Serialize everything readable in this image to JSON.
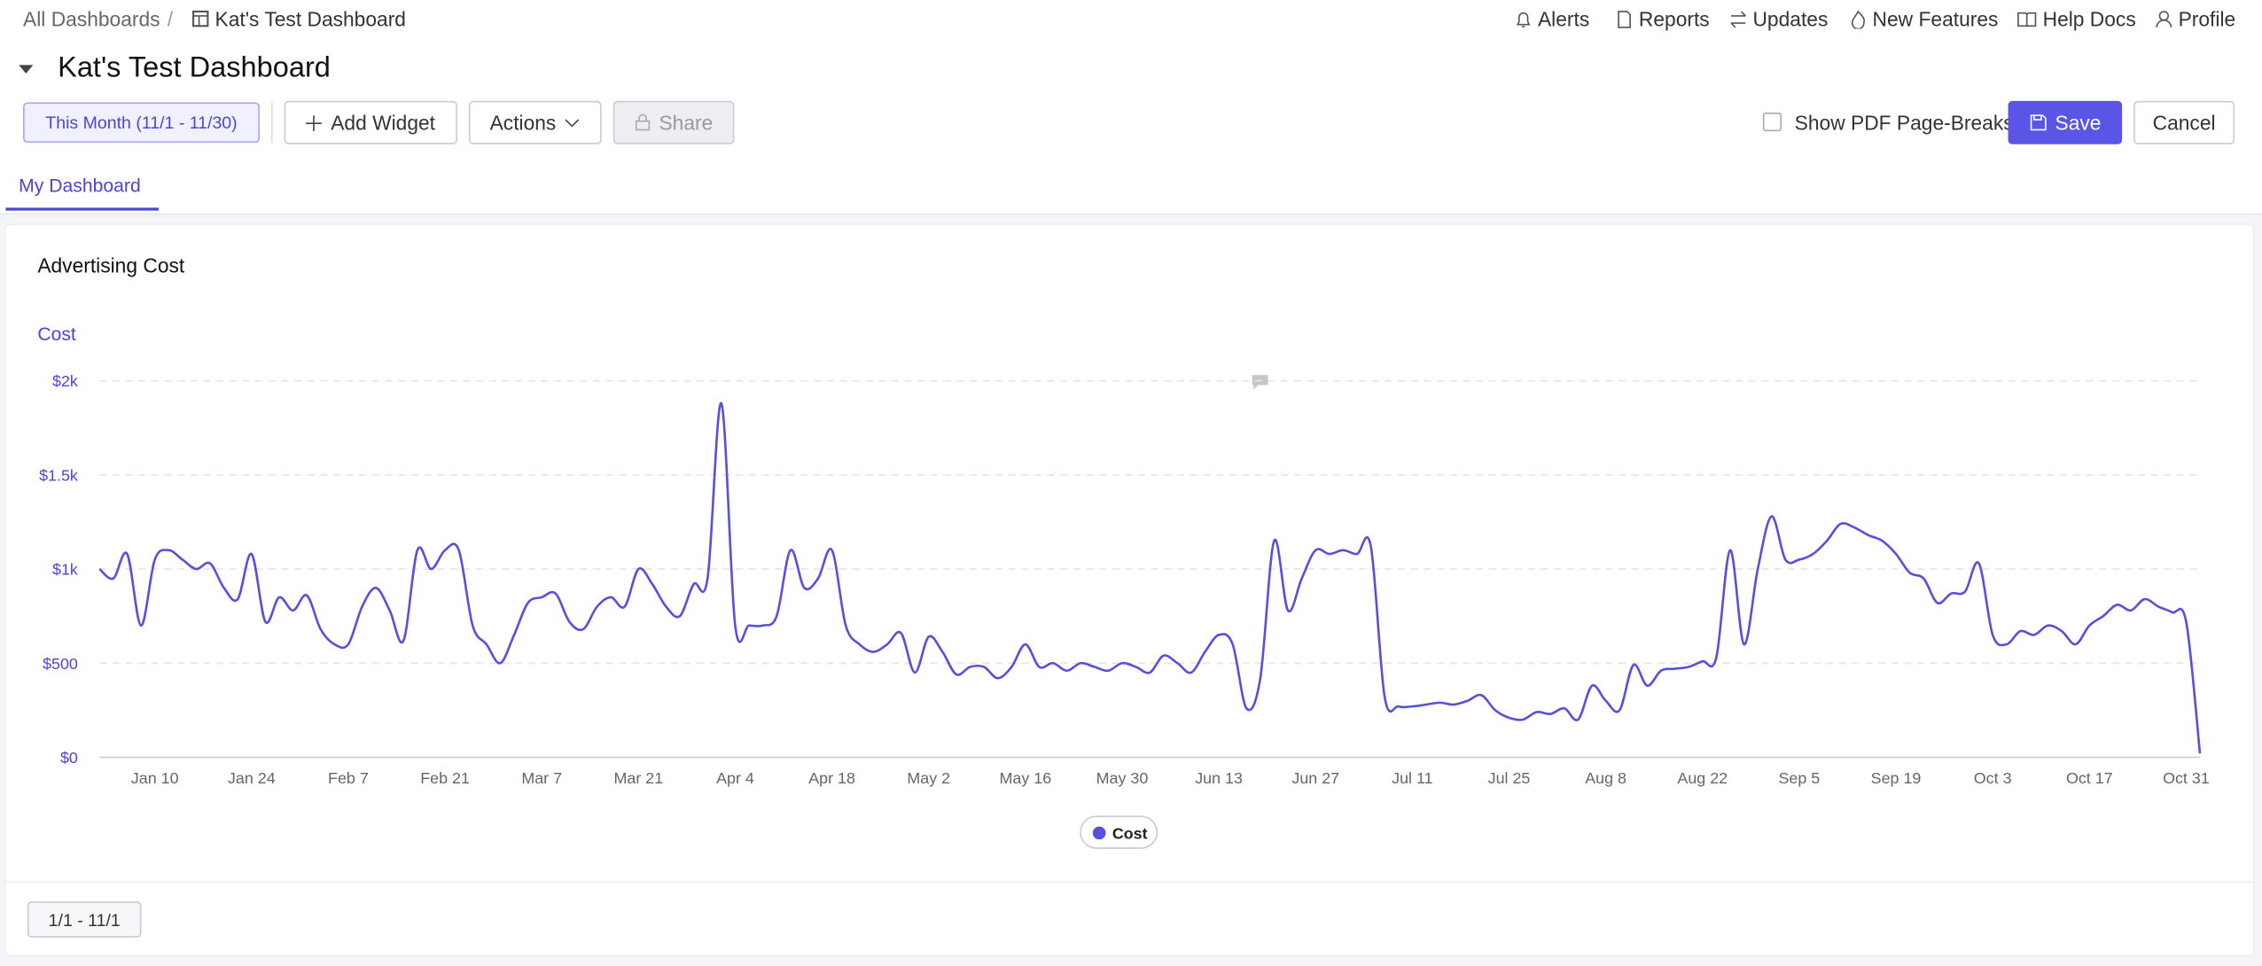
{
  "header": {
    "breadcrumb": [
      "All Dashboards",
      "/",
      "Kat's Test Dashboard"
    ],
    "nav": [
      "Alerts",
      "Reports",
      "Updates",
      "New Features",
      "Help Docs",
      "Profile"
    ]
  },
  "dashboard": {
    "title": "Kat's Test Dashboard",
    "date_range": "This Month (11/1 - 11/30)",
    "add_widget": "Add Widget",
    "actions": "Actions",
    "share": "Share",
    "pdf_breaks": "Show PDF Page-Breaks",
    "save": "Save",
    "cancel": "Cancel",
    "tab": "My Dashboard"
  },
  "widget": {
    "title": "Advertising Cost",
    "footer": "1/1 - 11/1"
  },
  "chart_data": {
    "type": "line",
    "y_label": "Cost",
    "categories": [
      null,
      null,
      null,
      null,
      "Jan 10",
      null,
      null,
      null,
      null,
      null,
      null,
      "Jan 24",
      null,
      null,
      null,
      null,
      null,
      null,
      "Feb 7",
      null,
      null,
      null,
      null,
      null,
      null,
      "Feb 21",
      null,
      null,
      null,
      null,
      null,
      null,
      "Mar 7",
      null,
      null,
      null,
      null,
      null,
      null,
      "Mar 21",
      null,
      null,
      null,
      null,
      null,
      null,
      "Apr 4",
      null,
      null,
      null,
      null,
      null,
      null,
      "Apr 18",
      null,
      null,
      null,
      null,
      null,
      null,
      "May 2",
      null,
      null,
      null,
      null,
      null,
      null,
      "May 16",
      null,
      null,
      null,
      null,
      null,
      null,
      "May 30",
      null,
      null,
      null,
      null,
      null,
      null,
      "Jun 13",
      null,
      null,
      null,
      null,
      null,
      null,
      "Jun 27",
      null,
      null,
      null,
      null,
      null,
      null,
      "Jul 11",
      null,
      null,
      null,
      null,
      null,
      null,
      "Jul 25",
      null,
      null,
      null,
      null,
      null,
      null,
      "Aug 8",
      null,
      null,
      null,
      null,
      null,
      null,
      "Aug 22",
      null,
      null,
      null,
      null,
      null,
      null,
      "Sep 5",
      null,
      null,
      null,
      null,
      null,
      null,
      "Sep 19",
      null,
      null,
      null,
      null,
      null,
      null,
      "Oct 3",
      null,
      null,
      null,
      null,
      null,
      null,
      "Oct 17",
      null,
      null,
      null,
      null,
      null,
      null,
      "Oct 31",
      null
    ],
    "series": [
      {
        "name": "Cost",
        "color": "#5650dc",
        "values": [
          1000,
          950,
          1080,
          700,
          1050,
          1100,
          1050,
          1000,
          1030,
          900,
          840,
          1080,
          720,
          850,
          780,
          860,
          680,
          600,
          600,
          800,
          900,
          780,
          620,
          1100,
          1000,
          1100,
          1100,
          700,
          600,
          500,
          650,
          820,
          850,
          870,
          720,
          680,
          800,
          850,
          800,
          1000,
          920,
          800,
          750,
          920,
          950,
          1880,
          700,
          700,
          700,
          750,
          1100,
          900,
          950,
          1100,
          700,
          600,
          560,
          600,
          660,
          450,
          640,
          560,
          440,
          480,
          480,
          420,
          480,
          600,
          480,
          500,
          460,
          500,
          480,
          460,
          500,
          480,
          450,
          540,
          500,
          450,
          560,
          650,
          600,
          260,
          420,
          1150,
          780,
          950,
          1100,
          1080,
          1100,
          1080,
          1120,
          320,
          270,
          270,
          280,
          290,
          280,
          300,
          330,
          250,
          210,
          200,
          240,
          230,
          260,
          200,
          380,
          300,
          250,
          490,
          380,
          460,
          470,
          480,
          510,
          530,
          1100,
          600,
          1000,
          1280,
          1050,
          1050,
          1080,
          1150,
          1240,
          1220,
          1180,
          1150,
          1080,
          980,
          950,
          820,
          870,
          880,
          1030,
          650,
          600,
          670,
          650,
          700,
          670,
          600,
          700,
          750,
          810,
          780,
          840,
          800,
          770,
          720,
          20
        ]
      }
    ],
    "ylim": [
      0,
      2000
    ],
    "yticks": [
      {
        "value": 0,
        "label": "$0"
      },
      {
        "value": 500,
        "label": "$500"
      },
      {
        "value": 1000,
        "label": "$1k"
      },
      {
        "value": 1500,
        "label": "$1.5k"
      },
      {
        "value": 2000,
        "label": "$2k"
      }
    ],
    "grid": true
  }
}
